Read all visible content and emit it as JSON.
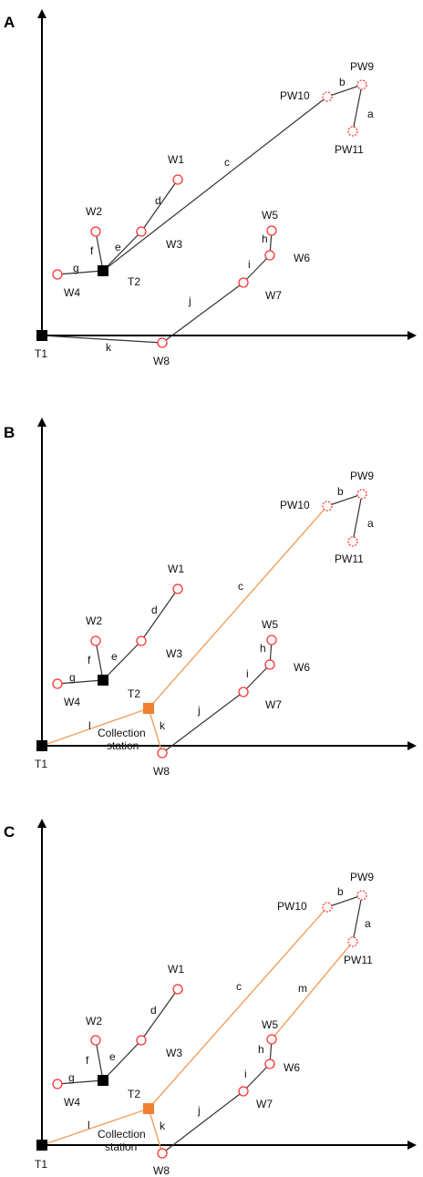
{
  "colors": {
    "line": "#333333",
    "new_line": "#f0a060",
    "node": "#ff3333",
    "square_black": "#000000",
    "square_new": "#f08030",
    "axis": "#000000"
  },
  "panels": [
    {
      "id": "A",
      "label": "A",
      "nodes": {
        "T1": "T1",
        "T2": "T2",
        "W1": "W1",
        "W2": "W2",
        "W3": "W3",
        "W4": "W4",
        "W5": "W5",
        "W6": "W6",
        "W7": "W7",
        "W8": "W8",
        "PW9": "PW9",
        "PW10": "PW10",
        "PW11": "PW11"
      },
      "edges": {
        "a": "a",
        "b": "b",
        "c": "c",
        "d": "d",
        "e": "e",
        "f": "f",
        "g": "g",
        "h": "h",
        "i": "i",
        "j": "j",
        "k": "k"
      }
    },
    {
      "id": "B",
      "label": "B",
      "nodes": {
        "T1": "T1",
        "T2": "T2",
        "W1": "W1",
        "W2": "W2",
        "W3": "W3",
        "W4": "W4",
        "W5": "W5",
        "W6": "W6",
        "W7": "W7",
        "W8": "W8",
        "PW9": "PW9",
        "PW10": "PW10",
        "PW11": "PW11",
        "collection_1": "Collection",
        "collection_2": "station"
      },
      "edges": {
        "a": "a",
        "b": "b",
        "c": "c",
        "d": "d",
        "e": "e",
        "f": "f",
        "g": "g",
        "h": "h",
        "i": "i",
        "j": "j",
        "k": "k",
        "l": "l"
      }
    },
    {
      "id": "C",
      "label": "C",
      "nodes": {
        "T1": "T1",
        "T2": "T2",
        "W1": "W1",
        "W2": "W2",
        "W3": "W3",
        "W4": "W4",
        "W5": "W5",
        "W6": "W6",
        "W7": "W7",
        "W8": "W8",
        "PW9": "PW9",
        "PW10": "PW10",
        "PW11": "PW11",
        "collection_1": "Collection",
        "collection_2": "station"
      },
      "edges": {
        "a": "a",
        "b": "b",
        "c": "c",
        "d": "d",
        "e": "e",
        "f": "f",
        "g": "g",
        "h": "h",
        "i": "i",
        "j": "j",
        "k": "k",
        "l": "l",
        "m": "m"
      }
    }
  ]
}
